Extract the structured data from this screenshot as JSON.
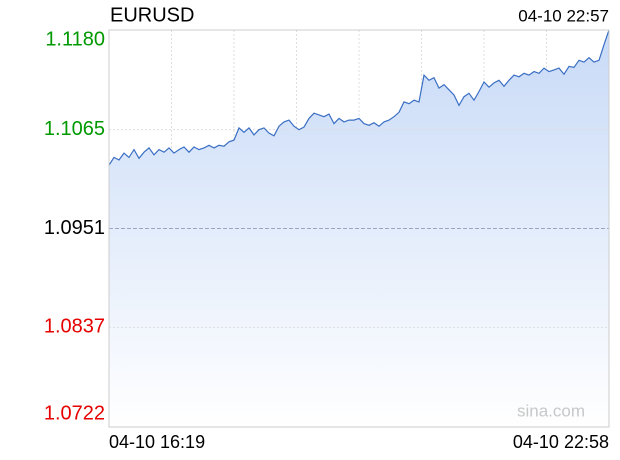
{
  "chart_data": {
    "type": "line",
    "title": "EURUSD",
    "timestamp": "04-10 22:57",
    "watermark": "sina.com",
    "categories": [
      "04-10 16:19",
      null,
      null,
      null,
      null,
      null,
      null,
      null,
      null,
      null,
      null,
      null,
      null,
      null,
      null,
      null,
      null,
      null,
      null,
      null,
      null,
      null,
      null,
      null,
      null,
      null,
      null,
      null,
      null,
      null,
      null,
      null,
      null,
      null,
      null,
      null,
      null,
      null,
      null,
      null,
      null,
      null,
      null,
      null,
      null,
      null,
      null,
      null,
      null,
      null,
      null,
      null,
      null,
      null,
      null,
      null,
      null,
      null,
      null,
      null,
      null,
      null,
      null,
      null,
      null,
      null,
      null,
      null,
      null,
      null,
      null,
      null,
      null,
      null,
      null,
      null,
      null,
      null,
      null,
      null,
      null,
      null,
      null,
      null,
      null,
      null,
      null,
      null,
      null,
      null,
      null,
      null,
      null,
      null,
      null,
      null,
      null,
      null,
      null,
      null,
      "04-10 22:58"
    ],
    "values": [
      1.1024,
      1.1033,
      1.103,
      1.1038,
      1.1033,
      1.1042,
      1.1032,
      1.1039,
      1.1044,
      1.1036,
      1.1042,
      1.1039,
      1.1044,
      1.1038,
      1.1042,
      1.1045,
      1.1039,
      1.1045,
      1.1042,
      1.1044,
      1.1047,
      1.1044,
      1.1047,
      1.1046,
      1.1051,
      1.1053,
      1.1067,
      1.1062,
      1.1067,
      1.1059,
      1.1065,
      1.1067,
      1.1061,
      1.1058,
      1.1069,
      1.1074,
      1.1076,
      1.1069,
      1.1065,
      1.1068,
      1.1078,
      1.1084,
      1.1082,
      1.108,
      1.1083,
      1.1072,
      1.1078,
      1.1074,
      1.1076,
      1.1076,
      1.1078,
      1.1072,
      1.107,
      1.1073,
      1.1069,
      1.1074,
      1.1076,
      1.108,
      1.1085,
      1.1097,
      1.1095,
      1.1099,
      1.1097,
      1.1128,
      1.1122,
      1.1125,
      1.1113,
      1.1117,
      1.1111,
      1.1105,
      1.1093,
      1.1103,
      1.1107,
      1.1099,
      1.1109,
      1.112,
      1.1114,
      1.1119,
      1.1122,
      1.1115,
      1.1122,
      1.1128,
      1.1126,
      1.113,
      1.1128,
      1.1132,
      1.113,
      1.1136,
      1.1132,
      1.1134,
      1.1136,
      1.1129,
      1.1138,
      1.1137,
      1.1145,
      1.1143,
      1.1148,
      1.1143,
      1.1145,
      1.1163,
      1.118
    ],
    "color": "#3a6fc4",
    "fill_color": "#c8daf7",
    "ylim": [
      1.0722,
      1.118
    ],
    "yticks": [
      {
        "value": 1.0722,
        "label": "1.0722"
      },
      {
        "value": 1.0837,
        "label": "1.0837"
      },
      {
        "value": 1.0951,
        "label": "1.0951"
      },
      {
        "value": 1.1065,
        "label": "1.1065"
      },
      {
        "value": 1.118,
        "label": "1.1180"
      }
    ],
    "ytick_colors": [
      "#e60000",
      "#e60000",
      "#000000",
      "#009900",
      "#009900"
    ],
    "x_divisions": 8,
    "grid": true
  }
}
